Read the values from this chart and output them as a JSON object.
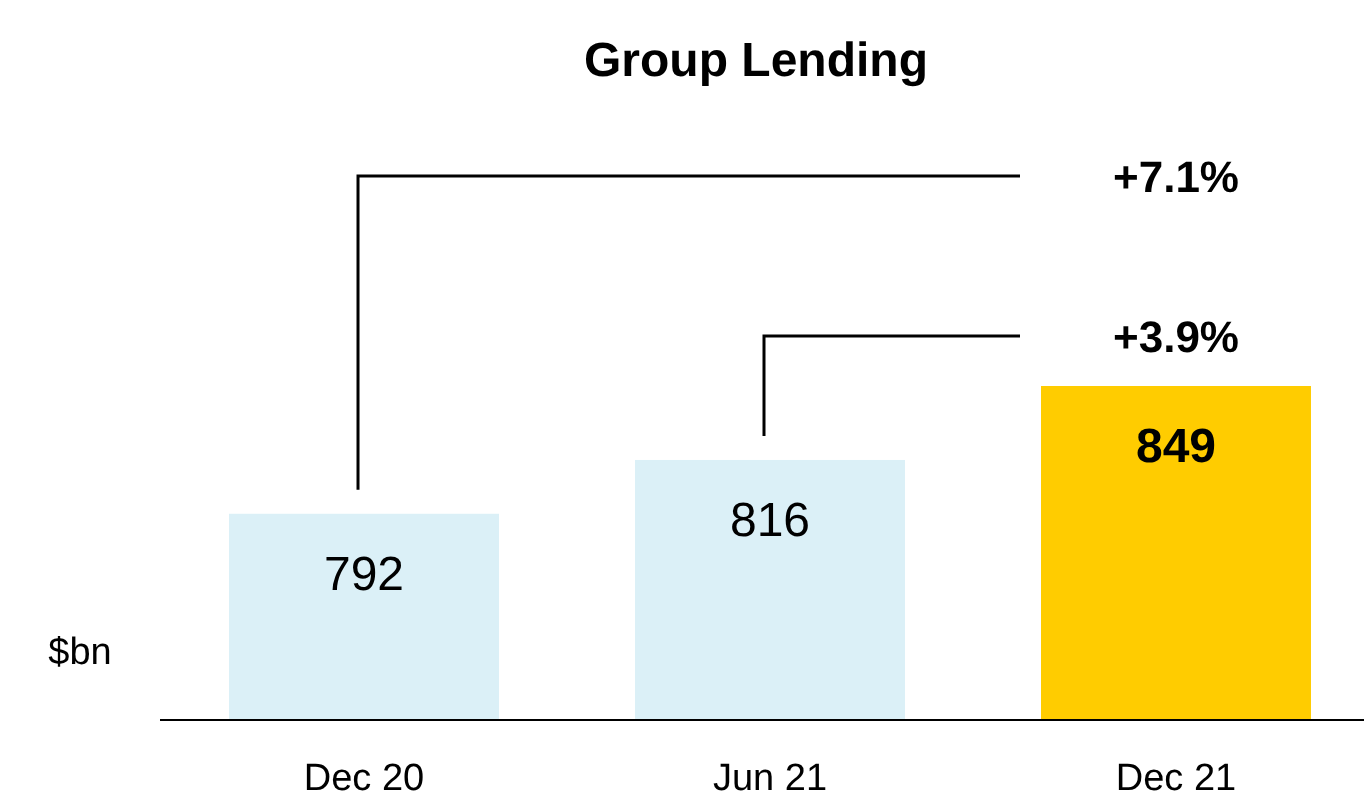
{
  "chart_data": {
    "type": "bar",
    "title": "Group Lending",
    "ylabel": "$bn",
    "categories": [
      "Dec 20",
      "Jun 21",
      "Dec 21"
    ],
    "values": [
      792,
      816,
      849
    ],
    "colors": [
      "#dbf0f7",
      "#dbf0f7",
      "#ffcc00"
    ],
    "ylim": [
      700,
      849
    ],
    "tick_labels": "x",
    "data_labels": true,
    "annotations": [
      "+7.1%",
      "+3.9%"
    ]
  }
}
